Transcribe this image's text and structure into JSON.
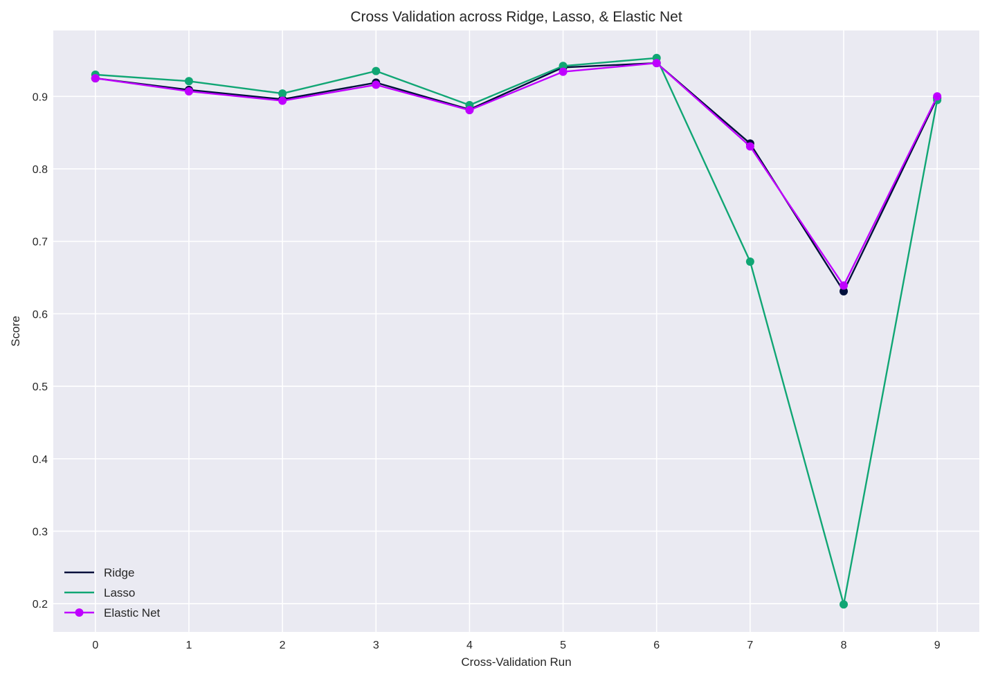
{
  "chart_data": {
    "type": "line",
    "title": "Cross Validation across Ridge, Lasso, & Elastic Net",
    "xlabel": "Cross-Validation Run",
    "ylabel": "Score",
    "x": [
      0,
      1,
      2,
      3,
      4,
      5,
      6,
      7,
      8,
      9
    ],
    "xlim": [
      -0.45,
      9.45
    ],
    "ylim": [
      0.161,
      0.991
    ],
    "yticks": [
      0.2,
      0.3,
      0.4,
      0.5,
      0.6,
      0.7,
      0.8,
      0.9
    ],
    "xticks": [
      0,
      1,
      2,
      3,
      4,
      5,
      6,
      7,
      8,
      9
    ],
    "grid": true,
    "background": "#eaeaf2",
    "legend": {
      "placement": "lower-left"
    },
    "series": [
      {
        "name": "Ridge",
        "color": "#000f3c",
        "values": [
          0.925,
          0.909,
          0.896,
          0.919,
          0.882,
          0.94,
          0.946,
          0.835,
          0.631,
          0.898
        ]
      },
      {
        "name": "Lasso",
        "color": "#10a674",
        "values": [
          0.93,
          0.921,
          0.904,
          0.935,
          0.888,
          0.942,
          0.953,
          0.672,
          0.199,
          0.895
        ]
      },
      {
        "name": "Elastic Net",
        "color": "#bf00ff",
        "values": [
          0.925,
          0.907,
          0.894,
          0.916,
          0.881,
          0.934,
          0.946,
          0.831,
          0.639,
          0.9
        ]
      }
    ]
  }
}
